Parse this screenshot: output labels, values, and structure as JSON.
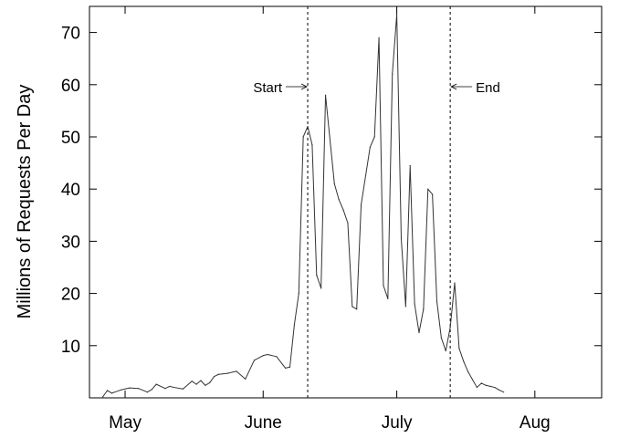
{
  "chart_data": {
    "type": "line",
    "title": "",
    "xlabel": "",
    "ylabel": "Millions of Requests Per Day",
    "grid": false,
    "legend": "none",
    "x_axis": {
      "unit": "day-of-year",
      "range": [
        113,
        228
      ],
      "ticks": [
        {
          "x": 121,
          "label": "May"
        },
        {
          "x": 152,
          "label": "June"
        },
        {
          "x": 182,
          "label": "July"
        },
        {
          "x": 213,
          "label": "Aug"
        }
      ]
    },
    "y_axis": {
      "range": [
        0,
        75
      ],
      "ticks": [
        10,
        20,
        30,
        40,
        50,
        60,
        70
      ]
    },
    "series": [
      {
        "color": "#333333",
        "x": [
          116,
          117,
          118,
          120,
          122,
          124,
          126,
          127,
          128,
          130,
          131,
          132,
          134,
          136,
          137,
          138,
          139,
          140,
          141,
          142,
          144,
          146,
          148,
          150,
          152,
          153,
          155,
          157,
          158,
          159,
          160,
          161,
          162,
          163,
          164,
          165,
          166,
          168,
          169,
          170,
          171,
          172,
          173,
          174,
          176,
          177,
          178,
          179,
          180,
          181,
          182,
          183,
          184,
          185,
          186,
          187,
          188,
          189,
          190,
          191,
          192,
          193,
          194,
          195,
          196,
          197,
          198,
          199,
          200,
          201,
          202,
          203,
          204,
          205,
          206
        ],
        "y": [
          0.2,
          1.4,
          0.9,
          1.5,
          1.9,
          1.8,
          1.1,
          1.6,
          2.6,
          1.8,
          2.2,
          2.0,
          1.7,
          3.2,
          2.6,
          3.3,
          2.4,
          2.9,
          4.1,
          4.5,
          4.7,
          5.1,
          3.6,
          7.2,
          8.1,
          8.3,
          7.9,
          5.7,
          5.9,
          14.0,
          20.0,
          50.0,
          52.0,
          48.5,
          23.5,
          21.0,
          58.0,
          41.0,
          38.0,
          36.0,
          33.5,
          17.5,
          17.0,
          37.0,
          48.0,
          50.0,
          69.0,
          21.5,
          19.0,
          62.0,
          73.5,
          30.5,
          17.5,
          44.5,
          18.0,
          12.5,
          17.0,
          40.0,
          39.0,
          18.5,
          11.5,
          9.0,
          13.5,
          22.0,
          9.5,
          7.0,
          5.0,
          3.5,
          2.0,
          2.8,
          2.4,
          2.2,
          2.0,
          1.5,
          1.1
        ]
      }
    ],
    "markers": [
      {
        "x": 162,
        "label": "Start",
        "arrow": "right"
      },
      {
        "x": 194,
        "label": "End",
        "arrow": "left"
      }
    ]
  }
}
